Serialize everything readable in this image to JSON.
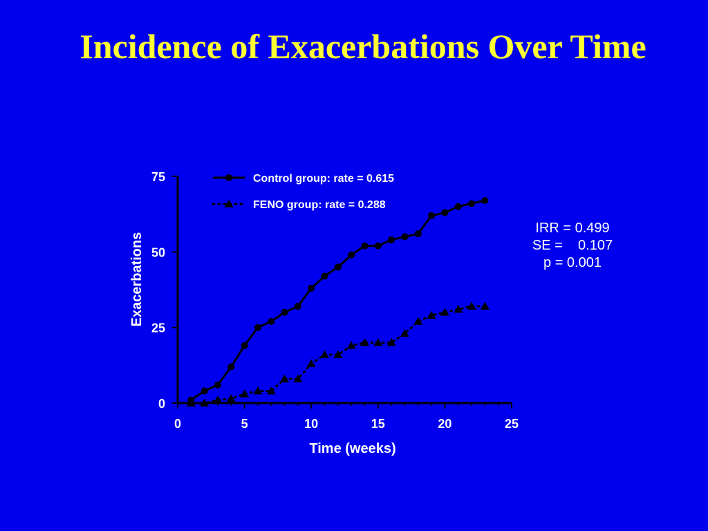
{
  "slide": {
    "title": "Incidence of Exacerbations Over Time"
  },
  "stats": {
    "irr": "IRR = 0.499",
    "se": "SE =    0.107",
    "p": "p = 0.001"
  },
  "chart_data": {
    "type": "line",
    "xlabel": "Time (weeks)",
    "ylabel": "Exacerbations",
    "xlim": [
      0,
      25
    ],
    "ylim": [
      0,
      75
    ],
    "xticks": [
      0,
      5,
      10,
      15,
      20,
      25
    ],
    "yticks": [
      0,
      25,
      50,
      75
    ],
    "grid": false,
    "legend_position": "top-left",
    "series": [
      {
        "name": "Control group: rate = 0.615",
        "marker": "circle",
        "line": "solid",
        "x": [
          1,
          2,
          3,
          4,
          5,
          6,
          7,
          8,
          9,
          10,
          11,
          12,
          13,
          14,
          15,
          16,
          17,
          18,
          19,
          20,
          21,
          22,
          23
        ],
        "y": [
          1,
          4,
          6,
          12,
          19,
          25,
          27,
          30,
          32,
          38,
          42,
          45,
          49,
          52,
          52,
          54,
          55,
          56,
          62,
          63,
          65,
          66,
          67
        ]
      },
      {
        "name": "FENO group: rate = 0.288",
        "marker": "triangle",
        "line": "dotted",
        "x": [
          1,
          2,
          3,
          4,
          5,
          6,
          7,
          8,
          9,
          10,
          11,
          12,
          13,
          14,
          15,
          16,
          17,
          18,
          19,
          20,
          21,
          22,
          23
        ],
        "y": [
          0,
          0,
          1,
          1.5,
          3,
          4,
          4,
          8,
          8,
          13,
          16,
          16,
          19,
          20,
          20,
          20,
          23,
          27,
          29,
          30,
          31,
          32,
          32
        ]
      }
    ]
  },
  "colors": {
    "background": "#0000ee",
    "title": "#ffff33",
    "series": "#000000",
    "axis": "#000000",
    "text": "#ffffff"
  }
}
